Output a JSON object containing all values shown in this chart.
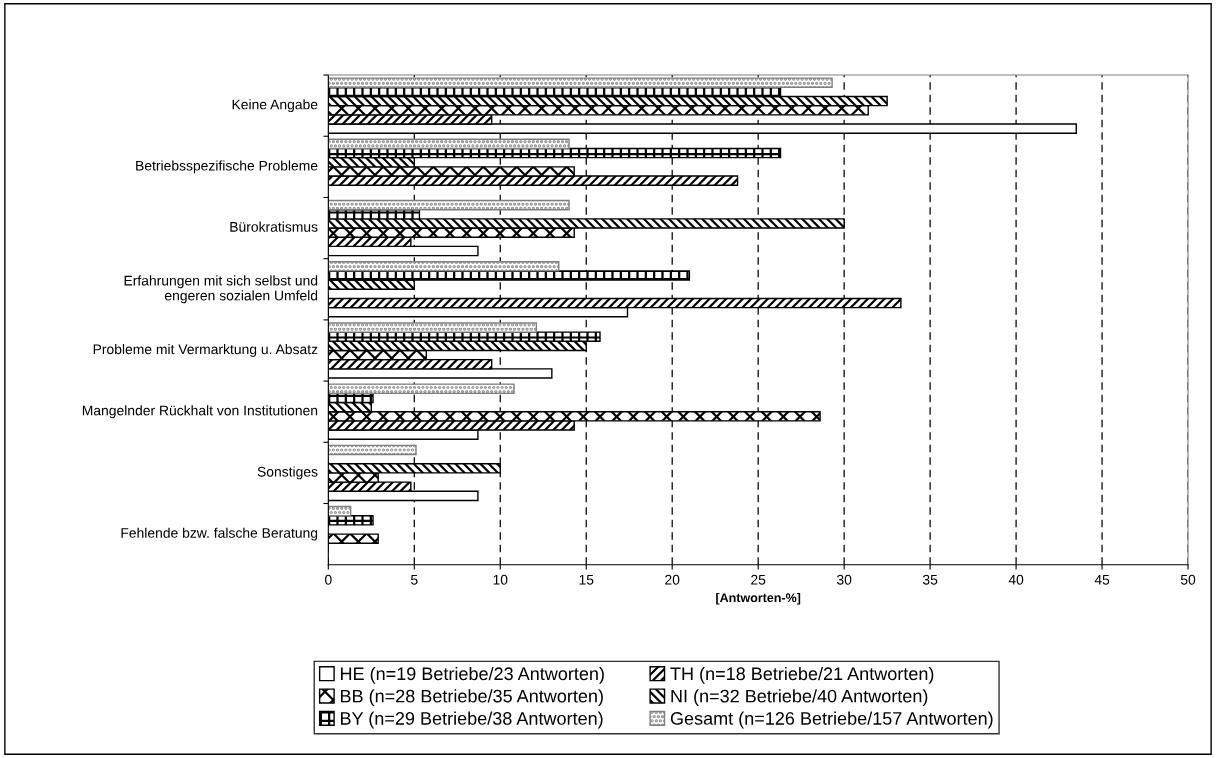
{
  "chart_data": {
    "type": "bar",
    "orientation": "horizontal",
    "xlabel": "[Antworten-%]",
    "categories": [
      "Keine Angabe",
      "Betriebsspezifische Probleme",
      "Bürokratismus",
      "Erfahrungen mit sich selbst und\nengeren sozialen Umfeld",
      "Probleme mit Vermarktung u. Absatz",
      "Mangelnder Rückhalt von Institutionen",
      "Sonstiges",
      "Fehlende bzw. falsche Beratung"
    ],
    "series": [
      {
        "name": "HE (n=19 Betriebe/23 Antworten)",
        "color": "#ffffff",
        "values": [
          43.5,
          null,
          8.7,
          17.4,
          13.0,
          8.7,
          8.7,
          null
        ]
      },
      {
        "name": "TH (n=18 Betriebe/21 Antworten)",
        "color": "#000000",
        "values": [
          9.5,
          23.8,
          4.8,
          33.3,
          9.5,
          14.3,
          4.8,
          null
        ]
      },
      {
        "name": "BB (n=28 Betriebe/35 Antworten)",
        "color": "#000000",
        "values": [
          31.4,
          14.3,
          14.3,
          null,
          5.7,
          28.6,
          2.9,
          2.9
        ]
      },
      {
        "name": "NI (n=32 Betriebe/40 Antworten)",
        "color": "#000000",
        "values": [
          32.5,
          5.0,
          30.0,
          5.0,
          15.0,
          2.5,
          10.0,
          null
        ]
      },
      {
        "name": "BY (n=29 Betriebe/38 Antworten)",
        "color": "#000000",
        "values": [
          26.3,
          26.3,
          5.3,
          21.0,
          15.8,
          2.6,
          null,
          2.6
        ]
      },
      {
        "name": "Gesamt (n=126 Betriebe/157 Antworten)",
        "color": "#808080",
        "values": [
          29.3,
          14.0,
          14.0,
          13.4,
          12.1,
          10.8,
          5.1,
          1.3
        ]
      }
    ],
    "xlim": [
      0,
      50
    ],
    "xticks": [
      0,
      5,
      10,
      15,
      20,
      25,
      30,
      35,
      40,
      45,
      50
    ],
    "grid": "x",
    "legend": "bottom"
  }
}
